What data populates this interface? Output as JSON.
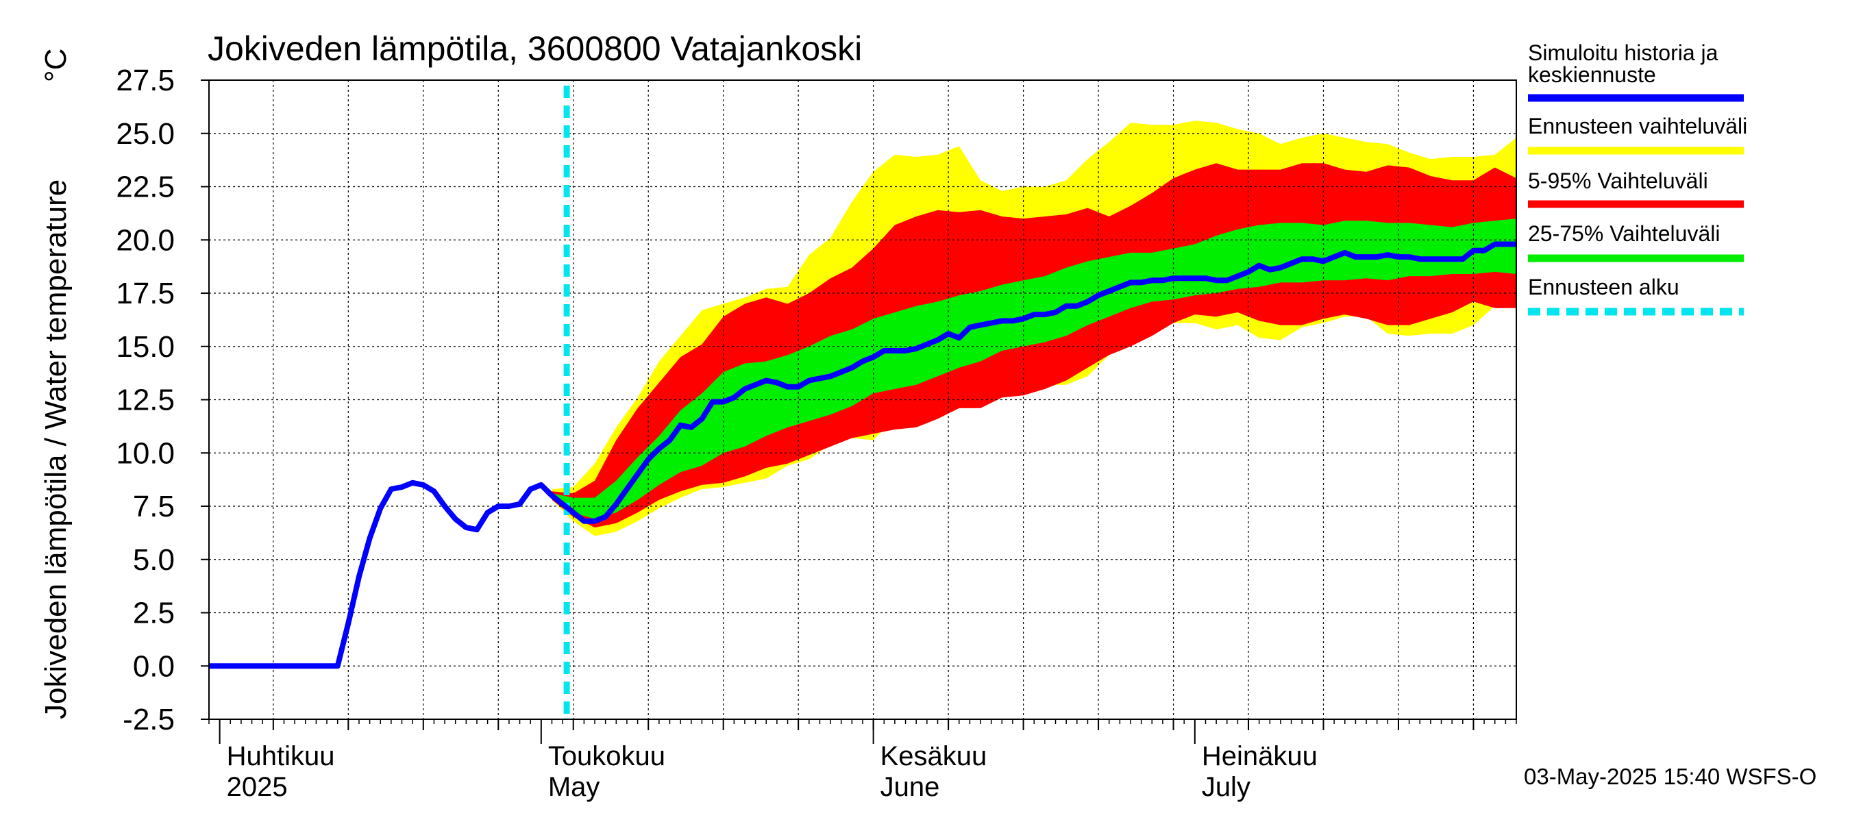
{
  "chart_data": {
    "type": "area",
    "title": "Jokiveden lämpötila, 3600800 Vatajankoski",
    "ylabel": "Jokiveden lämpötila / Water temperature",
    "yunit": "°C",
    "ylim": [
      -2.5,
      27.5
    ],
    "yticks": [
      "27.5",
      "25.0",
      "22.5",
      "20.0",
      "17.5",
      "15.0",
      "12.5",
      "10.0",
      "7.5",
      "5.0",
      "2.5",
      "0.0",
      "-2.5"
    ],
    "xlim": [
      "2025-03-31",
      "2025-07-31"
    ],
    "grid": true,
    "forecast_start": "2025-05-03",
    "timestamp": "03-May-2025 15:40 WSFS-O",
    "months": [
      {
        "start": "2025-04-01",
        "fi": "Huhtikuu",
        "en": "2025"
      },
      {
        "start": "2025-05-01",
        "fi": "Toukokuu",
        "en": "May"
      },
      {
        "start": "2025-06-01",
        "fi": "Kesäkuu",
        "en": "June"
      },
      {
        "start": "2025-07-01",
        "fi": "Heinäkuu",
        "en": "July"
      }
    ],
    "legend": {
      "placement": "right",
      "entries": [
        {
          "label": "Simuloitu historia ja",
          "label2": "keskiennuste",
          "color": "#0000ff",
          "style": "solid"
        },
        {
          "label": "Ennusteen vaihteluväli",
          "color": "#ffff00",
          "style": "solid"
        },
        {
          "label": "5-95% Vaihteluväli",
          "color": "#ff0000",
          "style": "solid"
        },
        {
          "label": "25-75% Vaihteluväli",
          "color": "#00ee00",
          "style": "solid"
        },
        {
          "label": "Ennusteen alku",
          "color": "#00e5ee",
          "style": "dashed"
        }
      ]
    },
    "colors": {
      "median": "#0000ff",
      "range": "#ffff00",
      "p5_95": "#ff0000",
      "p25_75": "#00ee00",
      "forecast_start": "#00e5ee"
    },
    "series_dates": [
      "2025-03-31",
      "2025-04-12",
      "2025-04-13",
      "2025-04-14",
      "2025-04-15",
      "2025-04-16",
      "2025-04-17",
      "2025-04-18",
      "2025-04-19",
      "2025-04-20",
      "2025-04-21",
      "2025-04-22",
      "2025-04-23",
      "2025-04-24",
      "2025-04-25",
      "2025-04-26",
      "2025-04-27",
      "2025-04-28",
      "2025-04-29",
      "2025-04-30",
      "2025-05-01",
      "2025-05-02",
      "2025-05-03",
      "2025-05-04",
      "2025-05-05",
      "2025-05-06",
      "2025-05-07",
      "2025-05-08",
      "2025-05-09",
      "2025-05-10",
      "2025-05-11",
      "2025-05-12",
      "2025-05-13",
      "2025-05-14",
      "2025-05-15",
      "2025-05-16",
      "2025-05-17",
      "2025-05-18",
      "2025-05-19",
      "2025-05-20",
      "2025-05-21",
      "2025-05-22",
      "2025-05-23",
      "2025-05-24",
      "2025-05-25",
      "2025-05-26",
      "2025-05-27",
      "2025-05-28",
      "2025-05-29",
      "2025-05-30",
      "2025-05-31",
      "2025-06-01",
      "2025-06-02",
      "2025-06-03",
      "2025-06-04",
      "2025-06-05",
      "2025-06-06",
      "2025-06-07",
      "2025-06-08",
      "2025-06-09",
      "2025-06-10",
      "2025-06-11",
      "2025-06-12",
      "2025-06-13",
      "2025-06-14",
      "2025-06-15",
      "2025-06-16",
      "2025-06-17",
      "2025-06-18",
      "2025-06-19",
      "2025-06-20",
      "2025-06-21",
      "2025-06-22",
      "2025-06-23",
      "2025-06-24",
      "2025-06-25",
      "2025-06-26",
      "2025-06-27",
      "2025-06-28",
      "2025-06-29",
      "2025-06-30",
      "2025-07-01",
      "2025-07-02",
      "2025-07-03",
      "2025-07-04",
      "2025-07-05",
      "2025-07-06",
      "2025-07-07",
      "2025-07-08",
      "2025-07-09",
      "2025-07-10",
      "2025-07-11",
      "2025-07-12",
      "2025-07-13",
      "2025-07-14",
      "2025-07-15",
      "2025-07-16",
      "2025-07-17",
      "2025-07-18",
      "2025-07-19",
      "2025-07-20",
      "2025-07-21",
      "2025-07-22",
      "2025-07-23",
      "2025-07-24",
      "2025-07-25",
      "2025-07-26",
      "2025-07-27",
      "2025-07-28",
      "2025-07-29",
      "2025-07-30",
      "2025-07-31"
    ],
    "median": [
      0.0,
      0.0,
      2.0,
      4.2,
      6.0,
      7.4,
      8.3,
      8.4,
      8.6,
      8.5,
      8.2,
      7.5,
      6.9,
      6.5,
      6.4,
      7.2,
      7.5,
      7.5,
      7.6,
      8.3,
      8.5,
      8.0,
      7.6,
      7.2,
      6.8,
      6.8,
      7.0,
      7.6,
      8.3,
      9.0,
      9.7,
      10.2,
      10.6,
      11.3,
      11.2,
      11.6,
      12.4,
      12.4,
      12.6,
      13.0,
      13.2,
      13.4,
      13.3,
      13.1,
      13.1,
      13.4,
      13.5,
      13.6,
      13.8,
      14.0,
      14.3,
      14.5,
      14.8,
      14.8,
      14.8,
      14.9,
      15.1,
      15.3,
      15.6,
      15.4,
      15.9,
      16.0,
      16.1,
      16.2,
      16.2,
      16.3,
      16.5,
      16.5,
      16.6,
      16.9,
      16.9,
      17.1,
      17.4,
      17.6,
      17.8,
      18.0,
      18.0,
      18.1,
      18.1,
      18.2,
      18.2,
      18.2,
      18.2,
      18.1,
      18.1,
      18.3,
      18.5,
      18.8,
      18.6,
      18.7,
      18.9,
      19.1,
      19.1,
      19.0,
      19.2,
      19.4,
      19.2,
      19.2,
      19.2,
      19.3,
      19.2,
      19.2,
      19.1,
      19.1,
      19.1,
      19.1,
      19.1,
      19.5,
      19.5,
      19.8,
      19.8,
      19.8,
      19.8,
      19.8,
      19.9,
      20.0,
      19.6
    ],
    "p25_75_dates": [
      "2025-05-02",
      "2025-05-04",
      "2025-05-06",
      "2025-05-08",
      "2025-05-10",
      "2025-05-12",
      "2025-05-14",
      "2025-05-16",
      "2025-05-18",
      "2025-05-20",
      "2025-05-22",
      "2025-05-24",
      "2025-05-26",
      "2025-05-28",
      "2025-05-30",
      "2025-06-01",
      "2025-06-03",
      "2025-06-05",
      "2025-06-07",
      "2025-06-09",
      "2025-06-11",
      "2025-06-13",
      "2025-06-15",
      "2025-06-17",
      "2025-06-19",
      "2025-06-21",
      "2025-06-23",
      "2025-06-25",
      "2025-06-27",
      "2025-06-29",
      "2025-07-01",
      "2025-07-03",
      "2025-07-05",
      "2025-07-07",
      "2025-07-09",
      "2025-07-11",
      "2025-07-13",
      "2025-07-15",
      "2025-07-17",
      "2025-07-19",
      "2025-07-21",
      "2025-07-23",
      "2025-07-25",
      "2025-07-27",
      "2025-07-29",
      "2025-07-31"
    ],
    "p25_75_low": [
      7.9,
      7.2,
      6.9,
      7.2,
      7.8,
      8.5,
      9.1,
      9.4,
      10.0,
      10.3,
      10.8,
      11.2,
      11.5,
      11.8,
      12.2,
      12.8,
      13.0,
      13.2,
      13.6,
      14.0,
      14.3,
      14.8,
      15.0,
      15.2,
      15.5,
      16.0,
      16.4,
      16.8,
      17.1,
      17.2,
      17.4,
      17.5,
      17.7,
      17.8,
      18.0,
      18.0,
      18.1,
      18.1,
      18.2,
      18.1,
      18.3,
      18.3,
      18.4,
      18.4,
      18.5,
      18.4
    ],
    "p25_75_high": [
      8.1,
      7.9,
      7.9,
      8.7,
      9.8,
      10.8,
      12.0,
      12.8,
      13.8,
      14.2,
      14.3,
      14.6,
      15.0,
      15.5,
      15.8,
      16.3,
      16.6,
      16.9,
      17.1,
      17.4,
      17.6,
      17.9,
      18.1,
      18.3,
      18.7,
      19.0,
      19.2,
      19.4,
      19.4,
      19.6,
      19.8,
      20.2,
      20.5,
      20.7,
      20.8,
      20.8,
      20.7,
      20.9,
      20.9,
      20.8,
      20.8,
      20.7,
      20.6,
      20.8,
      20.9,
      21.0
    ],
    "p5_95_low": [
      7.8,
      7.0,
      6.5,
      6.7,
      7.2,
      7.8,
      8.2,
      8.5,
      8.6,
      8.9,
      9.3,
      9.5,
      9.9,
      10.3,
      10.7,
      10.9,
      11.1,
      11.2,
      11.6,
      12.1,
      12.1,
      12.6,
      12.7,
      13.0,
      13.4,
      14.0,
      14.6,
      15.0,
      15.5,
      16.1,
      16.5,
      16.4,
      16.6,
      16.2,
      16.0,
      16.0,
      16.3,
      16.5,
      16.3,
      16.0,
      16.0,
      16.3,
      16.6,
      17.1,
      16.8,
      16.8
    ],
    "p5_95_high": [
      8.2,
      8.1,
      8.7,
      10.6,
      12.1,
      13.3,
      14.5,
      15.1,
      16.4,
      17.0,
      17.3,
      17.0,
      17.5,
      18.2,
      18.7,
      19.6,
      20.7,
      21.1,
      21.4,
      21.3,
      21.4,
      21.1,
      21.0,
      21.1,
      21.2,
      21.5,
      21.1,
      21.6,
      22.2,
      22.9,
      23.3,
      23.6,
      23.3,
      23.3,
      23.3,
      23.6,
      23.6,
      23.3,
      23.2,
      23.5,
      23.4,
      23.0,
      22.8,
      22.8,
      23.4,
      22.9
    ],
    "range_low": [
      7.8,
      6.8,
      6.1,
      6.3,
      6.8,
      7.4,
      7.9,
      8.3,
      8.4,
      8.6,
      8.8,
      9.4,
      9.7,
      10.4,
      10.7,
      10.6,
      11.6,
      12.2,
      12.4,
      12.8,
      12.6,
      12.7,
      12.9,
      13.2,
      13.2,
      13.6,
      14.6,
      15.2,
      15.6,
      16.1,
      16.1,
      15.8,
      16.0,
      15.4,
      15.3,
      15.9,
      16.1,
      16.4,
      16.4,
      15.6,
      15.5,
      15.6,
      15.6,
      16.0,
      16.9,
      17.1
    ],
    "range_high": [
      8.3,
      8.4,
      9.5,
      11.2,
      12.6,
      14.3,
      15.5,
      16.7,
      17.0,
      17.3,
      17.7,
      17.8,
      19.3,
      20.1,
      21.8,
      23.2,
      24.0,
      23.9,
      24.0,
      24.4,
      22.8,
      22.3,
      22.5,
      22.5,
      22.8,
      23.8,
      24.6,
      25.5,
      25.4,
      25.4,
      25.6,
      25.5,
      25.2,
      25.0,
      24.5,
      24.8,
      25.0,
      24.8,
      24.6,
      24.5,
      24.1,
      23.8,
      23.9,
      23.9,
      24.0,
      24.8
    ]
  }
}
